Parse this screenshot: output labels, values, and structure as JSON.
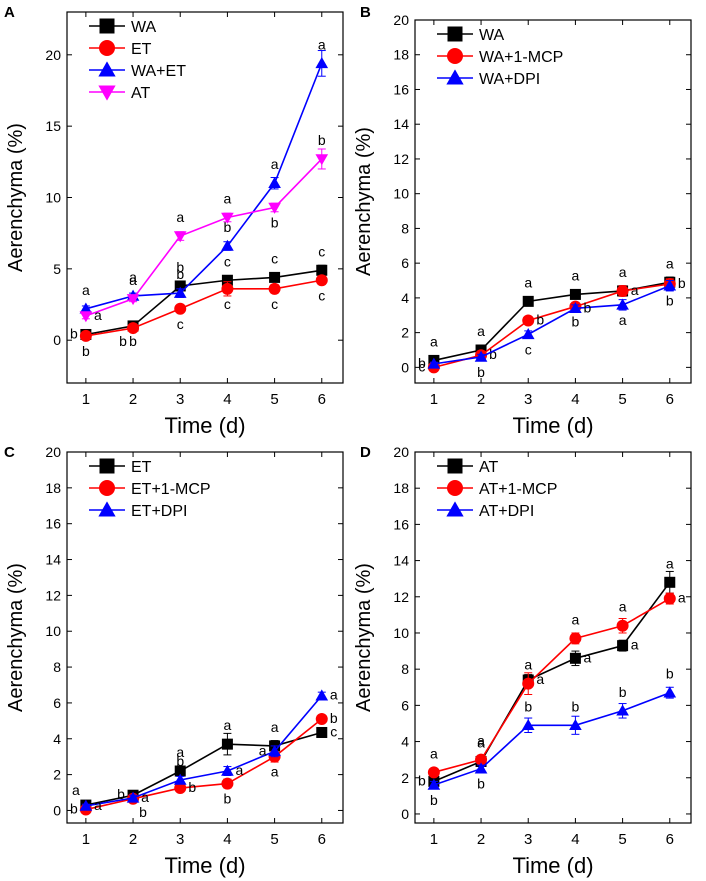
{
  "chart_data": [
    {
      "panel_label": "A",
      "type": "line",
      "xlabel": "Time (d)",
      "ylabel": "Aerenchyma (%)",
      "xlim": [
        0.6,
        6.45
      ],
      "ylim": [
        -3.0,
        23.0
      ],
      "xticks": [
        1,
        2,
        3,
        4,
        5,
        6
      ],
      "yticks": [
        0,
        5,
        10,
        15,
        20
      ],
      "x": [
        1,
        2,
        3,
        4,
        5,
        6
      ],
      "legend_position": "top-left",
      "series": [
        {
          "name": "WA",
          "color": "#000000",
          "marker": "square",
          "values": [
            0.4,
            1.0,
            3.8,
            4.2,
            4.4,
            4.9
          ],
          "errors": [
            0.15,
            0.15,
            0.3,
            0.3,
            0.3,
            0.35
          ],
          "letters": [
            "b",
            "b",
            "b",
            "c",
            "c",
            "c"
          ],
          "letter_pos": [
            "left",
            "below",
            "above",
            "above",
            "above",
            "above"
          ]
        },
        {
          "name": "ET",
          "color": "#ff0000",
          "marker": "circle",
          "values": [
            0.3,
            0.85,
            2.2,
            3.6,
            3.6,
            4.2
          ],
          "errors": [
            0.15,
            0.15,
            0.25,
            0.5,
            0.3,
            0.3
          ],
          "letters": [
            "b",
            "b",
            "c",
            "c",
            "c",
            "c"
          ],
          "letter_pos": [
            "below",
            "below-left",
            "below",
            "below",
            "below",
            "below"
          ]
        },
        {
          "name": "WA+ET",
          "color": "#0000ff",
          "marker": "triangle-up",
          "values": [
            2.2,
            3.1,
            3.3,
            6.6,
            11.0,
            19.4
          ],
          "errors": [
            0.2,
            0.2,
            0.3,
            0.3,
            0.4,
            0.9
          ],
          "letters": [
            "a",
            "a",
            "b",
            "b",
            "a",
            "a"
          ],
          "letter_pos": [
            "above",
            "above",
            "above",
            "above",
            "above",
            "above"
          ]
        },
        {
          "name": "AT",
          "color": "#ff00ff",
          "marker": "triangle-down",
          "values": [
            1.7,
            2.9,
            7.3,
            8.6,
            9.3,
            12.7
          ],
          "errors": [
            0.2,
            0.2,
            0.3,
            0.3,
            0.3,
            0.7
          ],
          "letters": [
            "a",
            "a",
            "a",
            "a",
            "b",
            "b"
          ],
          "letter_pos": [
            "right",
            "above",
            "above",
            "above",
            "below",
            "above"
          ]
        }
      ]
    },
    {
      "panel_label": "B",
      "type": "line",
      "xlabel": "Time (d)",
      "ylabel": "Aerenchyma (%)",
      "xlim": [
        0.6,
        6.45
      ],
      "ylim": [
        -0.9,
        20.0
      ],
      "xticks": [
        1,
        2,
        3,
        4,
        5,
        6
      ],
      "yticks": [
        0,
        2,
        4,
        6,
        8,
        10,
        12,
        14,
        16,
        18,
        20
      ],
      "x": [
        1,
        2,
        3,
        4,
        5,
        6
      ],
      "legend_position": "top-left",
      "series": [
        {
          "name": "WA",
          "color": "#000000",
          "marker": "square",
          "values": [
            0.4,
            1.0,
            3.8,
            4.2,
            4.4,
            4.9
          ],
          "errors": [
            0.15,
            0.15,
            0.2,
            0.2,
            0.3,
            0.3
          ],
          "letters": [
            "a",
            "a",
            "a",
            "a",
            "a",
            "a"
          ],
          "letter_pos": [
            "above",
            "above",
            "above",
            "above",
            "above",
            "above"
          ]
        },
        {
          "name": "WA+1-MCP",
          "color": "#ff0000",
          "marker": "circle",
          "values": [
            0.0,
            0.7,
            2.7,
            3.5,
            4.4,
            4.8
          ],
          "errors": [
            0.1,
            0.15,
            0.2,
            0.2,
            0.3,
            0.3
          ],
          "letters": [
            "c",
            "b",
            "b",
            "b",
            "a",
            "b"
          ],
          "letter_pos": [
            "left",
            "right",
            "right",
            "below",
            "right",
            "right"
          ]
        },
        {
          "name": "WA+DPI",
          "color": "#0000ff",
          "marker": "triangle-up",
          "values": [
            0.2,
            0.6,
            1.9,
            3.4,
            3.6,
            4.7
          ],
          "errors": [
            0.1,
            0.15,
            0.2,
            0.2,
            0.3,
            0.3
          ],
          "letters": [
            "b",
            "b",
            "c",
            "b",
            "a",
            "b"
          ],
          "letter_pos": [
            "left",
            "below",
            "below",
            "right",
            "below",
            "below"
          ]
        }
      ]
    },
    {
      "panel_label": "C",
      "type": "line",
      "xlabel": "Time (d)",
      "ylabel": "Aerenchyma (%)",
      "xlim": [
        0.6,
        6.45
      ],
      "ylim": [
        -0.7,
        20.0
      ],
      "xticks": [
        1,
        2,
        3,
        4,
        5,
        6
      ],
      "yticks": [
        0,
        2,
        4,
        6,
        8,
        10,
        12,
        14,
        16,
        18,
        20
      ],
      "x": [
        1,
        2,
        3,
        4,
        5,
        6
      ],
      "legend_position": "top-left",
      "series": [
        {
          "name": "ET",
          "color": "#000000",
          "marker": "square",
          "values": [
            0.3,
            0.85,
            2.2,
            3.7,
            3.6,
            4.35
          ],
          "errors": [
            0.1,
            0.15,
            0.25,
            0.6,
            0.3,
            0.2
          ],
          "letters": [
            "a",
            "b",
            "a",
            "a",
            "a",
            "c"
          ],
          "letter_pos": [
            "above-left",
            "left",
            "above",
            "above",
            "above",
            "right"
          ]
        },
        {
          "name": "ET+1-MCP",
          "color": "#ff0000",
          "marker": "circle",
          "values": [
            0.05,
            0.65,
            1.25,
            1.5,
            3.0,
            5.1
          ],
          "errors": [
            0.1,
            0.15,
            0.2,
            0.25,
            0.3,
            0.2
          ],
          "letters": [
            "b",
            "b",
            "b",
            "b",
            "a",
            "b"
          ],
          "letter_pos": [
            "left",
            "below-right",
            "right",
            "below",
            "below",
            "right"
          ]
        },
        {
          "name": "ET+DPI",
          "color": "#0000ff",
          "marker": "triangle-up",
          "values": [
            0.25,
            0.7,
            1.7,
            2.2,
            3.3,
            6.4
          ],
          "errors": [
            0.1,
            0.15,
            0.2,
            0.25,
            0.3,
            0.2
          ],
          "letters": [
            "a",
            "a",
            "b",
            "a",
            "a",
            "a"
          ],
          "letter_pos": [
            "right",
            "right",
            "above",
            "right",
            "left",
            "right"
          ]
        }
      ]
    },
    {
      "panel_label": "D",
      "type": "line",
      "xlabel": "Time (d)",
      "ylabel": "Aerenchyma (%)",
      "xlim": [
        0.6,
        6.45
      ],
      "ylim": [
        -0.5,
        20.0
      ],
      "xticks": [
        1,
        2,
        3,
        4,
        5,
        6
      ],
      "yticks": [
        0,
        2,
        4,
        6,
        8,
        10,
        12,
        14,
        16,
        18,
        20
      ],
      "x": [
        1,
        2,
        3,
        4,
        5,
        6
      ],
      "legend_position": "top-left",
      "series": [
        {
          "name": "AT",
          "color": "#000000",
          "marker": "square",
          "values": [
            1.8,
            2.9,
            7.4,
            8.6,
            9.3,
            12.8
          ],
          "errors": [
            0.2,
            0.2,
            0.3,
            0.4,
            0.3,
            0.6
          ],
          "letters": [
            "b",
            "a",
            "a",
            "a",
            "a",
            "a"
          ],
          "letter_pos": [
            "left",
            "above",
            "right",
            "right",
            "right",
            "above"
          ]
        },
        {
          "name": "AT+1-MCP",
          "color": "#ff0000",
          "marker": "circle",
          "values": [
            2.3,
            3.0,
            7.2,
            9.7,
            10.4,
            11.9
          ],
          "errors": [
            0.2,
            0.2,
            0.6,
            0.3,
            0.4,
            0.3
          ],
          "letters": [
            "a",
            "a",
            "a",
            "a",
            "a",
            "a"
          ],
          "letter_pos": [
            "above",
            "above",
            "above",
            "above",
            "above",
            "right"
          ]
        },
        {
          "name": "AT+DPI",
          "color": "#0000ff",
          "marker": "triangle-up",
          "values": [
            1.6,
            2.5,
            4.9,
            4.9,
            5.7,
            6.7
          ],
          "errors": [
            0.2,
            0.2,
            0.4,
            0.5,
            0.4,
            0.3
          ],
          "letters": [
            "b",
            "b",
            "b",
            "b",
            "b",
            "b"
          ],
          "letter_pos": [
            "below",
            "below",
            "above",
            "above",
            "above",
            "above"
          ]
        }
      ]
    }
  ]
}
